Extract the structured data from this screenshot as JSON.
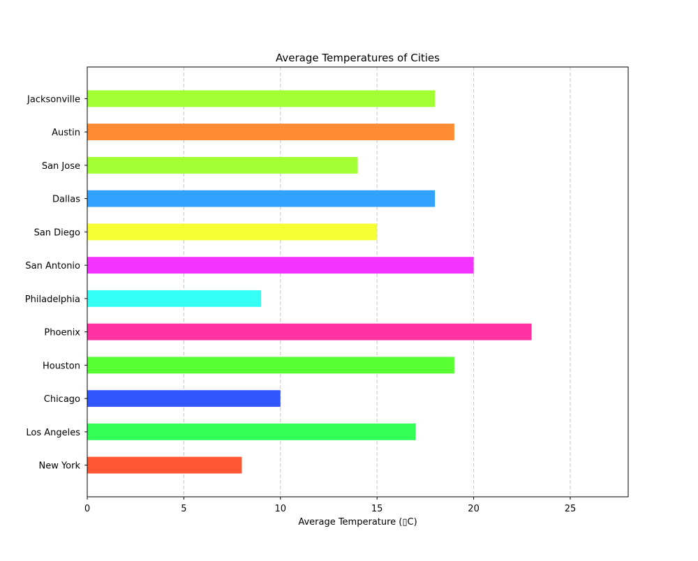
{
  "chart_data": {
    "type": "bar",
    "orientation": "horizontal",
    "title": "Average Temperatures of Cities",
    "xlabel": "Average Temperature (▯C)",
    "ylabel": "",
    "categories": [
      "New York",
      "Los Angeles",
      "Chicago",
      "Houston",
      "Phoenix",
      "Philadelphia",
      "San Antonio",
      "San Diego",
      "Dallas",
      "San Jose",
      "Austin",
      "Jacksonville"
    ],
    "values": [
      8,
      17,
      10,
      19,
      23,
      9,
      20,
      15,
      18,
      14,
      19,
      18
    ],
    "colors": [
      "#ff5733",
      "#33ff57",
      "#3357ff",
      "#57ff33",
      "#ff33a1",
      "#33fff5",
      "#f533ff",
      "#f5ff33",
      "#33a1ff",
      "#a1ff33",
      "#ff8c33",
      "#a1ff33"
    ],
    "xlim": [
      0,
      28
    ],
    "xticks": [
      0,
      5,
      10,
      15,
      20,
      25
    ],
    "grid": "x-dashed"
  }
}
